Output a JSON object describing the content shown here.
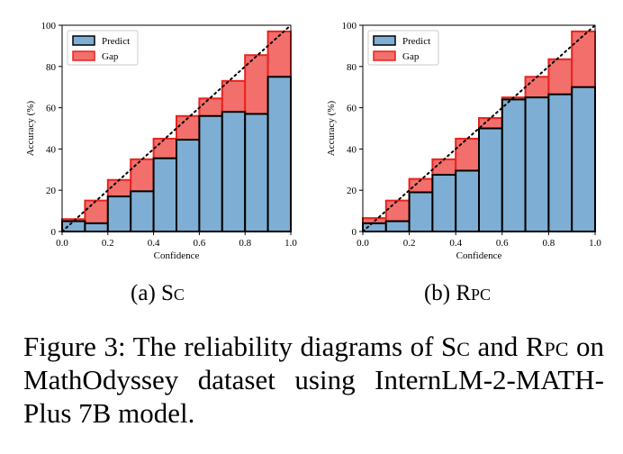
{
  "chart_data": [
    {
      "type": "bar",
      "subtitle_prefix": "(a) ",
      "subtitle_method": "Sc",
      "xlabel": "Confidence",
      "ylabel": "Accuracy (%)",
      "xlim": [
        0.0,
        1.0
      ],
      "ylim": [
        0,
        100
      ],
      "x_ticks": [
        "0.0",
        "0.2",
        "0.4",
        "0.6",
        "0.8",
        "1.0"
      ],
      "y_ticks": [
        "0",
        "20",
        "40",
        "60",
        "80",
        "100"
      ],
      "bin_centers": [
        0.05,
        0.15,
        0.25,
        0.35,
        0.45,
        0.55,
        0.65,
        0.75,
        0.85,
        0.95
      ],
      "series": [
        {
          "name": "Predict",
          "color": "#7eaed3",
          "values": [
            5,
            4,
            17,
            19.5,
            35.5,
            44.5,
            56,
            58,
            57,
            75
          ]
        },
        {
          "name": "Gap",
          "color": "#f26f6c",
          "values": [
            6,
            15,
            25,
            35,
            45,
            56,
            64.5,
            73,
            85.5,
            97
          ]
        }
      ],
      "legend": "top-left",
      "reference_line": "diagonal dotted"
    },
    {
      "type": "bar",
      "subtitle_prefix": "(b) ",
      "subtitle_method": "Rpc",
      "xlabel": "Confidence",
      "ylabel": "Accuracy (%)",
      "xlim": [
        0.0,
        1.0
      ],
      "ylim": [
        0,
        100
      ],
      "x_ticks": [
        "0.0",
        "0.2",
        "0.4",
        "0.6",
        "0.8",
        "1.0"
      ],
      "y_ticks": [
        "0",
        "20",
        "40",
        "60",
        "80",
        "100"
      ],
      "bin_centers": [
        0.05,
        0.15,
        0.25,
        0.35,
        0.45,
        0.55,
        0.65,
        0.75,
        0.85,
        0.95
      ],
      "series": [
        {
          "name": "Predict",
          "color": "#7eaed3",
          "values": [
            4,
            5,
            19,
            27.5,
            29.5,
            50,
            64,
            65,
            66.5,
            70
          ]
        },
        {
          "name": "Gap",
          "color": "#f26f6c",
          "values": [
            6.5,
            15,
            25.5,
            35,
            45,
            55,
            65,
            75,
            83.5,
            97
          ]
        }
      ],
      "legend": "top-left",
      "reference_line": "diagonal dotted"
    }
  ],
  "caption": {
    "label": "Figure 3:",
    "t1": " The reliability diagrams of ",
    "m1": "Sc",
    "t2": " and ",
    "m2": "Rpc",
    "t3": " on MathOdyssey dataset using InternLM-2-MATH-Plus 7B model."
  }
}
